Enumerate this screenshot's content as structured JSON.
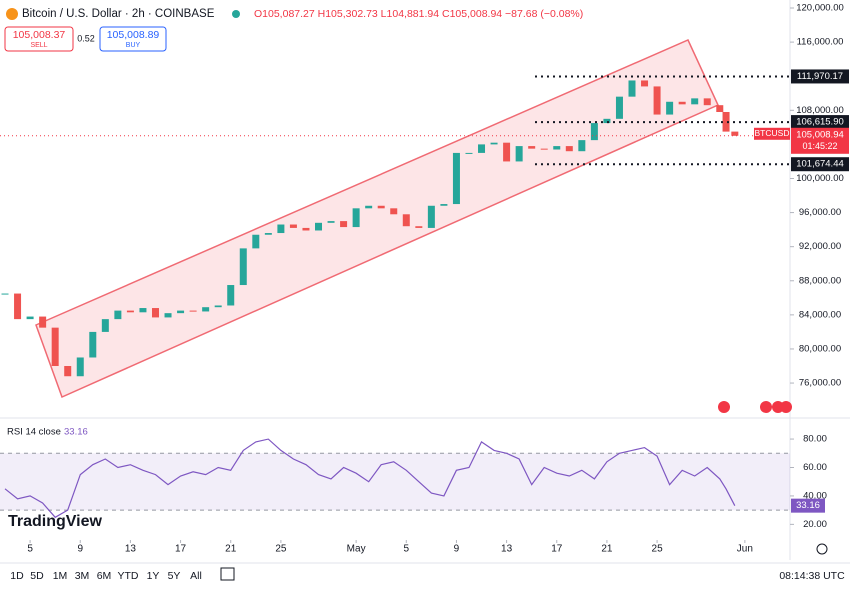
{
  "header": {
    "symbol": "Bitcoin / U.S. Dollar · 2h · COINBASE",
    "ohlc": "O105,087.27 H105,302.73 L104,881.94 C105,008.94 −87.68 (−0.08%)",
    "sell_price": "105,008.37",
    "sell": "SELL",
    "spread": "0.52",
    "buy_price": "105,008.89",
    "buy": "BUY",
    "logo": "TradingView"
  },
  "last": {
    "symbol": "BTCUSD",
    "price": "105,008.94",
    "countdown": "01:45:22"
  },
  "toolbar": {
    "ranges": [
      "1D",
      "5D",
      "1M",
      "3M",
      "6M",
      "YTD",
      "1Y",
      "5Y",
      "All"
    ],
    "clock": "08:14:38 UTC"
  },
  "chart_data": [
    {
      "type": "candlestick",
      "color_up": "#26a69a",
      "color_down": "#ef5350",
      "x": [
        3,
        4,
        5,
        6,
        7,
        8,
        9,
        10,
        11,
        12,
        13,
        14,
        15,
        16,
        17,
        18,
        19,
        20,
        21,
        22,
        23,
        24,
        25,
        26,
        27,
        28,
        29,
        30,
        31,
        32,
        33,
        34,
        35,
        36,
        37,
        38,
        39,
        40,
        41,
        42,
        43,
        44,
        45,
        46,
        47,
        48,
        49,
        50,
        51,
        52,
        53,
        54,
        55,
        56,
        57,
        58,
        59,
        60,
        60.5,
        61.2
      ],
      "values": [
        86500,
        83500,
        83800,
        82500,
        78000,
        76800,
        79000,
        82000,
        83500,
        84500,
        84300,
        84800,
        83700,
        84200,
        84500,
        84400,
        84900,
        85100,
        87500,
        91800,
        93400,
        93600,
        94600,
        94200,
        93900,
        94800,
        95000,
        94300,
        96500,
        96800,
        96500,
        95800,
        94400,
        94200,
        96800,
        97000,
        103000,
        103000,
        104000,
        104200,
        102000,
        103800,
        103500,
        103400,
        103800,
        103200,
        104500,
        106500,
        107000,
        109600,
        111500,
        110800,
        107500,
        109000,
        108700,
        109400,
        108600,
        107800,
        105500,
        105008.94
      ],
      "xlim": [
        2.6,
        65.6
      ],
      "ylim": [
        71900,
        120940
      ],
      "xticks": [
        5,
        9,
        13,
        17,
        21,
        25,
        {
          "value": 31,
          "label": "May"
        },
        {
          "value": 35,
          "label": "5"
        },
        {
          "value": 39,
          "label": "9"
        },
        {
          "value": 43,
          "label": "13"
        },
        {
          "value": 47,
          "label": "17"
        },
        {
          "value": 51,
          "label": "21"
        },
        {
          "value": 55,
          "label": "25"
        },
        {
          "value": 62,
          "label": "Jun"
        }
      ],
      "yticks": [
        {
          "value": 76000,
          "label": "76,000.00"
        },
        {
          "value": 80000,
          "label": "80,000.00"
        },
        {
          "value": 84000,
          "label": "84,000.00"
        },
        {
          "value": 88000,
          "label": "88,000.00"
        },
        {
          "value": 92000,
          "label": "92,000.00"
        },
        {
          "value": 96000,
          "label": "96,000.00"
        },
        {
          "value": 100000,
          "label": "100,000.00"
        },
        {
          "value": 108000,
          "label": "108,000.00"
        },
        {
          "value": 116000,
          "label": "116,000.00"
        },
        {
          "value": 120000,
          "label": "120,000.00"
        }
      ],
      "levels": [
        {
          "value": 111970.17,
          "label": "111,970.17"
        },
        {
          "value": 106615.9,
          "label": "106,615.90"
        },
        {
          "value": 101674.44,
          "label": "101,674.44"
        }
      ]
    },
    {
      "type": "line",
      "title": "RSI 14 close",
      "color": "#7e57c2",
      "value_label": "33.16",
      "x": [
        3,
        4,
        5,
        6,
        7,
        8,
        9,
        10,
        11,
        12,
        13,
        14,
        15,
        16,
        17,
        18,
        19,
        20,
        21,
        22,
        23,
        24,
        25,
        26,
        27,
        28,
        29,
        30,
        31,
        32,
        33,
        34,
        35,
        36,
        37,
        38,
        39,
        40,
        41,
        42,
        43,
        44,
        45,
        46,
        47,
        48,
        49,
        50,
        51,
        52,
        53,
        54,
        55,
        56,
        57,
        58,
        59,
        60,
        60.5,
        61.2
      ],
      "values": [
        45,
        38,
        40,
        35,
        25,
        30,
        55,
        62,
        66,
        60,
        62,
        58,
        55,
        48,
        54,
        57,
        55,
        60,
        58,
        72,
        78,
        80,
        72,
        66,
        62,
        55,
        52,
        60,
        56,
        50,
        62,
        64,
        58,
        50,
        42,
        40,
        58,
        60,
        78,
        72,
        70,
        66,
        48,
        60,
        56,
        54,
        58,
        52,
        64,
        70,
        72,
        74,
        68,
        48,
        58,
        54,
        60,
        52,
        45,
        33.16
      ],
      "xlim": [
        2.6,
        65.6
      ],
      "ylim": [
        9,
        92
      ],
      "band": [
        30,
        70
      ],
      "yticks": [
        {
          "value": 80,
          "label": "80.00"
        },
        {
          "value": 60,
          "label": "60.00"
        },
        {
          "value": 40,
          "label": "40.00"
        },
        {
          "value": 20,
          "label": "20.00"
        }
      ]
    }
  ]
}
